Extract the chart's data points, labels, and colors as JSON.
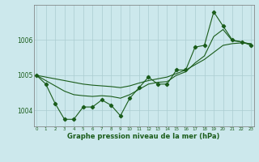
{
  "xlabel": "Graphe pression niveau de la mer (hPa)",
  "background_color": "#cce8ec",
  "grid_color": "#aaccd0",
  "line_color": "#1a5c1a",
  "x_values": [
    0,
    1,
    2,
    3,
    4,
    5,
    6,
    7,
    8,
    9,
    10,
    11,
    12,
    13,
    14,
    15,
    16,
    17,
    18,
    19,
    20,
    21,
    22,
    23
  ],
  "series_jagged": [
    1005.0,
    1004.75,
    1004.2,
    1003.75,
    1003.75,
    1004.1,
    1004.1,
    1004.3,
    1004.15,
    1003.85,
    1004.35,
    1004.65,
    1004.95,
    1004.75,
    1004.75,
    1005.15,
    1005.15,
    1005.8,
    1005.85,
    1006.8,
    1006.4,
    1006.0,
    1005.95,
    1005.85
  ],
  "series_smooth_lo": [
    1005.0,
    1004.95,
    1004.9,
    1004.85,
    1004.8,
    1004.75,
    1004.72,
    1004.7,
    1004.68,
    1004.65,
    1004.7,
    1004.78,
    1004.85,
    1004.9,
    1004.95,
    1005.05,
    1005.15,
    1005.3,
    1005.45,
    1005.65,
    1005.85,
    1005.9,
    1005.92,
    1005.9
  ],
  "series_smooth_hi": [
    1005.0,
    1004.85,
    1004.7,
    1004.55,
    1004.45,
    1004.42,
    1004.4,
    1004.42,
    1004.4,
    1004.35,
    1004.45,
    1004.6,
    1004.75,
    1004.8,
    1004.82,
    1005.0,
    1005.1,
    1005.35,
    1005.55,
    1006.1,
    1006.3,
    1005.98,
    1005.95,
    1005.88
  ],
  "ylim": [
    1003.55,
    1007.0
  ],
  "yticks": [
    1004.0,
    1005.0,
    1006.0
  ],
  "ytick_labels": [
    "1004",
    "1005",
    "1006"
  ],
  "xticks": [
    0,
    1,
    2,
    3,
    4,
    5,
    6,
    7,
    8,
    9,
    10,
    11,
    12,
    13,
    14,
    15,
    16,
    17,
    18,
    19,
    20,
    21,
    22,
    23
  ],
  "xtick_labels": [
    "0",
    "1",
    "2",
    "3",
    "4",
    "5",
    "6",
    "7",
    "8",
    "9",
    "10",
    "11",
    "12",
    "13",
    "14",
    "15",
    "16",
    "17",
    "18",
    "19",
    "20",
    "21",
    "22",
    "23"
  ]
}
